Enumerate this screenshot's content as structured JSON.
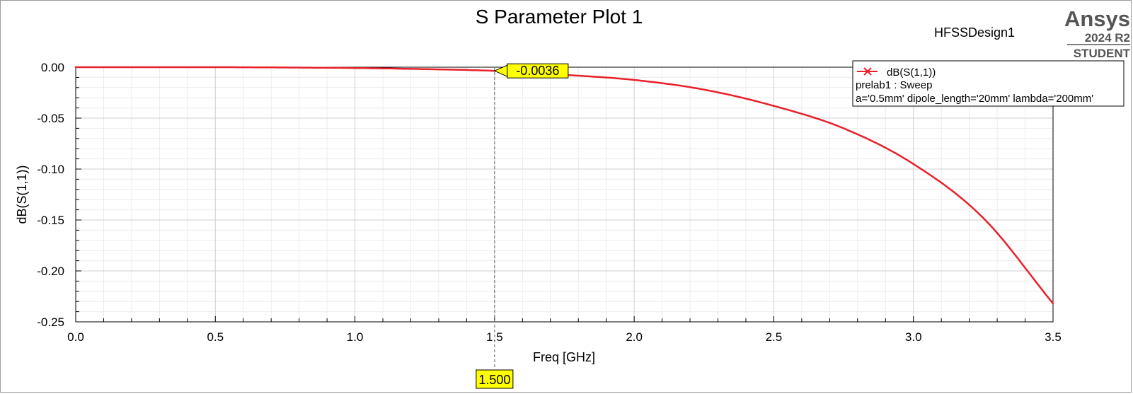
{
  "header": {
    "title": "S Parameter Plot 1",
    "design_name": "HFSSDesign1"
  },
  "brand": {
    "name": "Ansys",
    "version": "2024 R2",
    "edition": "STUDENT"
  },
  "legend": {
    "trace_label": "dB(S(1,1))",
    "setup_label": "prelab1 : Sweep",
    "params_label": "a='0.5mm' dipole_length='20mm' lambda='200mm'"
  },
  "marker": {
    "x": 1.5,
    "y": -0.0036,
    "x_label": "1.500",
    "y_label": "-0.0036"
  },
  "colors": {
    "trace": "#e8202a",
    "marker_fill": "#ffff00",
    "grid_major": "#cfcfcf",
    "grid_minor": "#ececec"
  },
  "chart_data": {
    "type": "line",
    "title": "S Parameter Plot 1",
    "xlabel": "Freq [GHz]",
    "ylabel": "dB(S(1,1))",
    "xlim": [
      0.0,
      3.5
    ],
    "ylim": [
      -0.25,
      0.0
    ],
    "x_ticks": [
      0.0,
      0.5,
      1.0,
      1.5,
      2.0,
      2.5,
      3.0,
      3.5
    ],
    "x_tick_labels": [
      "0.0",
      "0.5",
      "1.0",
      "1.5",
      "2.0",
      "2.5",
      "3.0",
      "3.5"
    ],
    "y_ticks": [
      0.0,
      -0.05,
      -0.1,
      -0.15,
      -0.2,
      -0.25
    ],
    "y_tick_labels": [
      "0.00",
      "-0.05",
      "-0.10",
      "-0.15",
      "-0.20",
      "-0.25"
    ],
    "grid": true,
    "legend_position": "top-right",
    "series": [
      {
        "name": "dB(S(1,1))",
        "x": [
          0.0,
          0.25,
          0.5,
          0.75,
          1.0,
          1.25,
          1.5,
          1.75,
          2.0,
          2.25,
          2.5,
          2.75,
          3.0,
          3.25,
          3.5
        ],
        "y": [
          0.0,
          0.0,
          0.0,
          -0.0003,
          -0.0008,
          -0.0019,
          -0.0036,
          -0.0075,
          -0.0125,
          -0.022,
          -0.038,
          -0.06,
          -0.095,
          -0.148,
          -0.232
        ]
      }
    ]
  }
}
